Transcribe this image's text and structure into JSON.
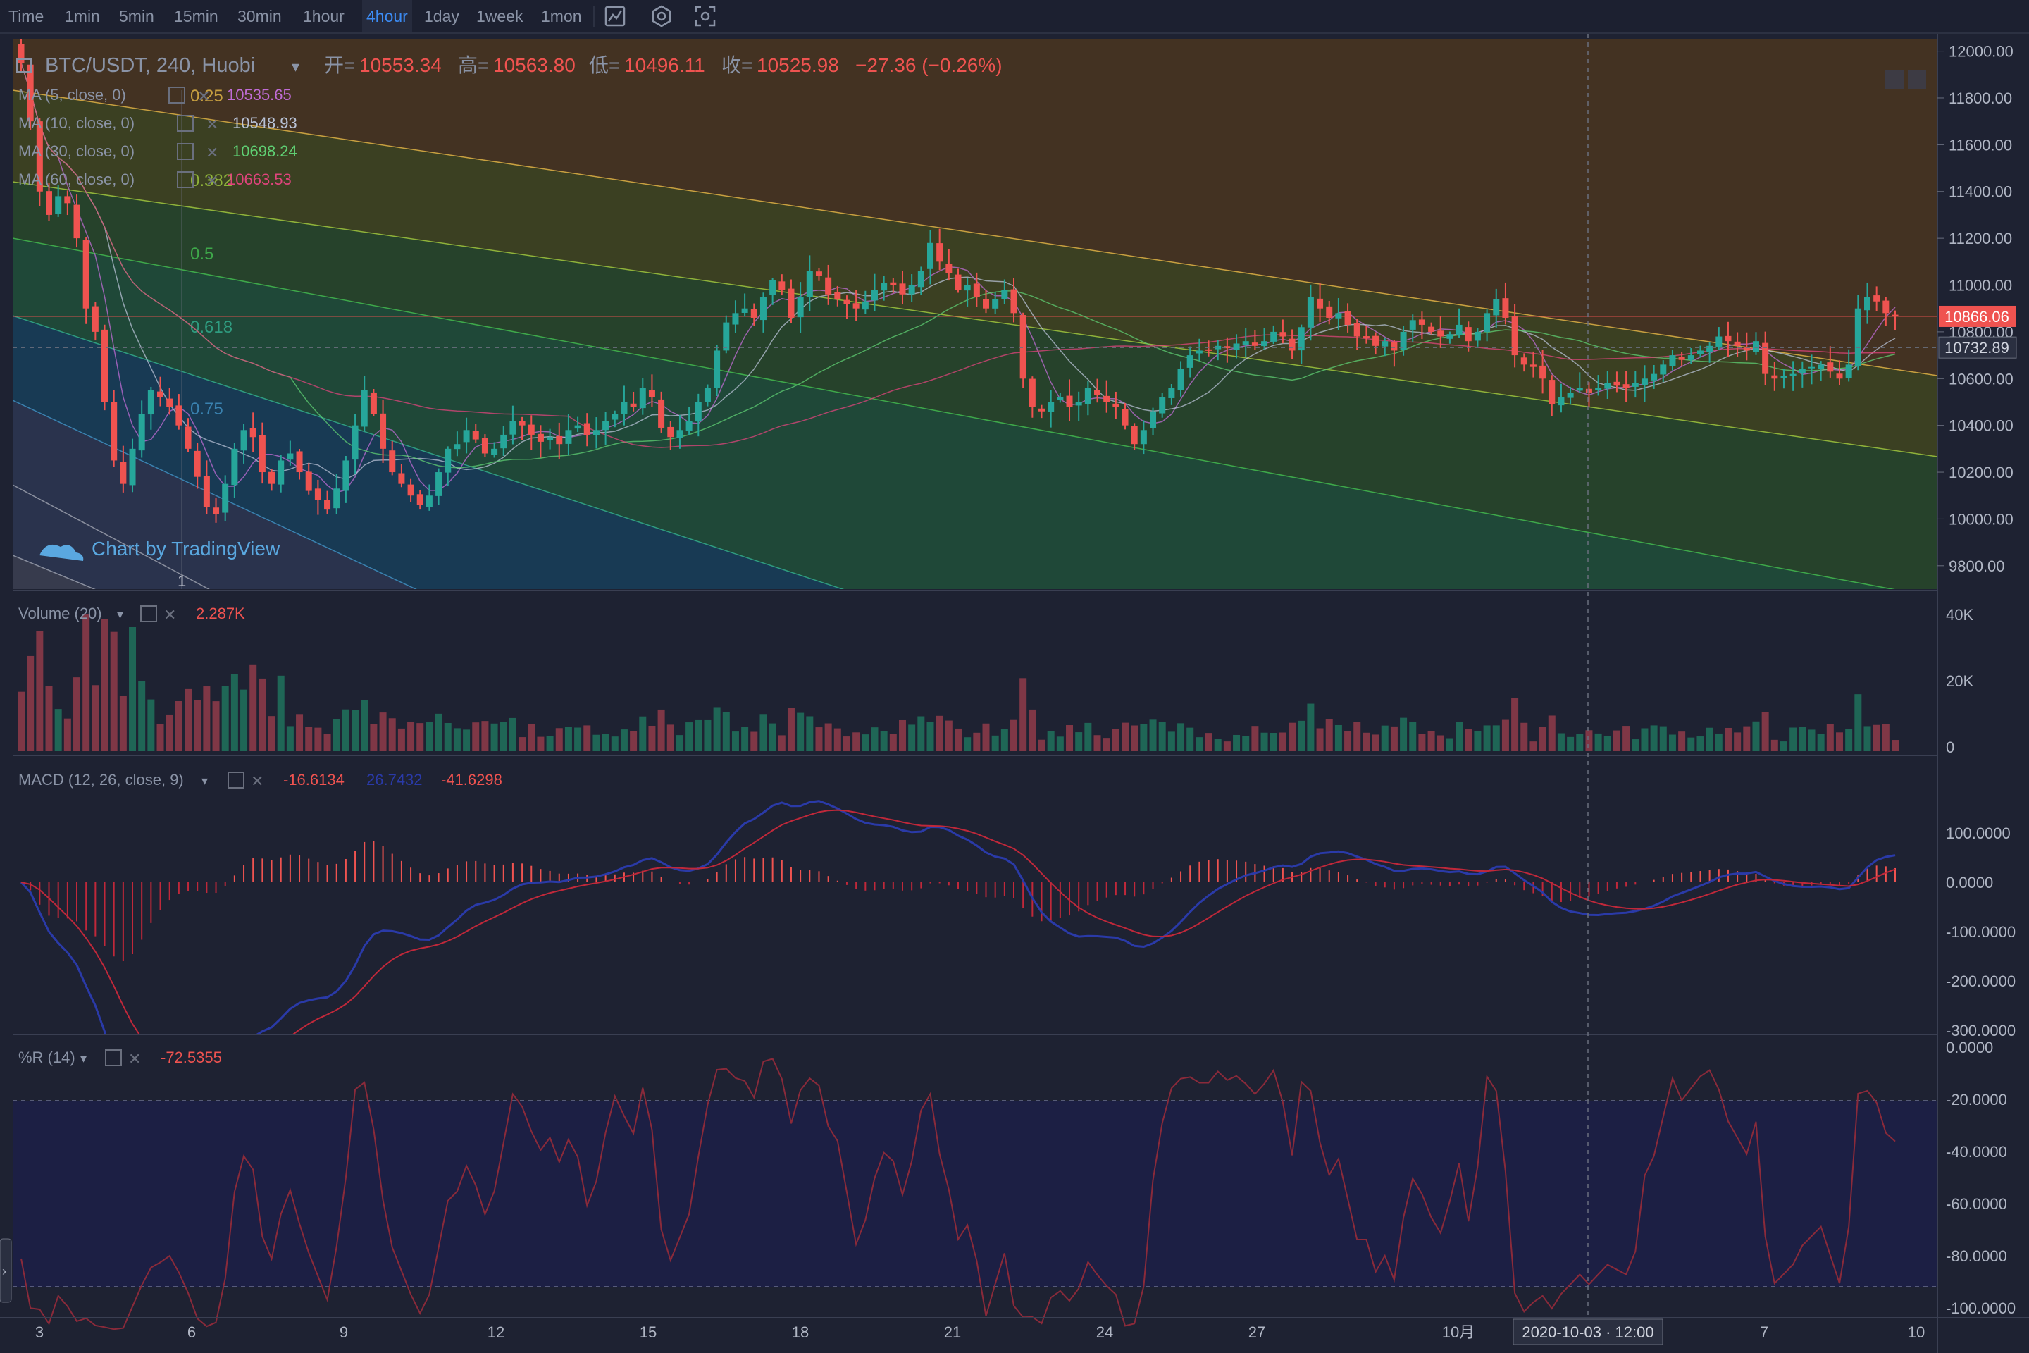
{
  "toolbar": {
    "intervals": [
      "Time",
      "1min",
      "5min",
      "15min",
      "30min",
      "1hour",
      "4hour",
      "1day",
      "1week",
      "1mon"
    ],
    "active": "4hour",
    "icons": [
      "indicator-icon",
      "settings-icon",
      "screenshot-icon"
    ]
  },
  "header": {
    "symbol": "BTC/USDT, 240, Huobi",
    "open_label": "开=",
    "open": "10553.34",
    "high_label": "高=",
    "high": "10563.80",
    "low_label": "低=",
    "low": "10496.11",
    "close_label": "收=",
    "close": "10525.98",
    "change": "−27.36 (−0.26%)"
  },
  "ma_legend": [
    {
      "label": "MA (5, close, 0)",
      "value": "10535.65",
      "color": "#c06cd6"
    },
    {
      "label": "MA (10, close, 0)",
      "value": "10548.93",
      "color": "#b8c2d6"
    },
    {
      "label": "MA (30, close, 0)",
      "value": "10698.24",
      "color": "#5fcf73"
    },
    {
      "label": "MA (60, close, 0)",
      "value": "10663.53",
      "color": "#e0447c"
    }
  ],
  "fib_levels": [
    "0.25",
    "0.382",
    "0.5",
    "0.618",
    "0.75",
    "1"
  ],
  "watermark": "Chart by TradingView",
  "price_axis": {
    "ticks": [
      "12000.00",
      "11800.00",
      "11600.00",
      "11400.00",
      "11200.00",
      "11000.00",
      "10800.00",
      "10600.00",
      "10400.00",
      "10200.00",
      "10000.00",
      "9800.00"
    ],
    "last_price_tag": "10866.06",
    "crosshair_tag": "10732.89"
  },
  "volume": {
    "label": "Volume (20)",
    "value": "2.287K",
    "ticks": [
      "40K",
      "20K",
      "0"
    ]
  },
  "macd": {
    "label": "MACD (12, 26, close, 9)",
    "v1": "-16.6134",
    "v2": "26.7432",
    "v3": "-41.6298",
    "ticks": [
      "100.0000",
      "0.0000",
      "-100.0000",
      "-200.0000",
      "-300.0000"
    ]
  },
  "wr": {
    "label": "%R (14)",
    "value": "-72.5355",
    "ticks": [
      "0.0000",
      "-20.0000",
      "-40.0000",
      "-60.0000",
      "-80.0000",
      "-100.0000"
    ]
  },
  "time_axis": {
    "labels": [
      "3",
      "6",
      "9",
      "12",
      "15",
      "18",
      "21",
      "24",
      "27",
      "10月",
      "7",
      "10"
    ],
    "crosshair_time": "2020-10-03 · 12:00"
  },
  "colors": {
    "up": "#26a69a",
    "down": "#ef5350",
    "background": "#1e2232",
    "accent": "#3c8cf5"
  },
  "chart_data": {
    "type": "candlestick",
    "title": "BTC/USDT, 240, Huobi",
    "ylim": [
      9700,
      12050
    ],
    "close_series": [
      11950,
      11700,
      11400,
      11300,
      11380,
      11350,
      11200,
      10900,
      10800,
      10500,
      10250,
      10150,
      10300,
      10450,
      10550,
      10520,
      10480,
      10400,
      10300,
      10180,
      10050,
      10020,
      10150,
      10300,
      10380,
      10350,
      10200,
      10150,
      10250,
      10280,
      10200,
      10120,
      10080,
      10040,
      10130,
      10250,
      10400,
      10550,
      10450,
      10300,
      10200,
      10150,
      10100,
      10060,
      10100,
      10200,
      10300,
      10320,
      10380,
      10340,
      10280,
      10300,
      10360,
      10420,
      10400,
      10360,
      10330,
      10350,
      10320,
      10380,
      10400,
      10360,
      10380,
      10420,
      10450,
      10500,
      10480,
      10560,
      10520,
      10390,
      10350,
      10380,
      10420,
      10500,
      10560,
      10720,
      10840,
      10880,
      10900,
      10860,
      10950,
      11020,
      10980,
      10860,
      10950,
      11060,
      11040,
      10960,
      10940,
      10920,
      10900,
      10930,
      10980,
      11010,
      11000,
      10960,
      11000,
      11060,
      11180,
      11100,
      11050,
      10980,
      11000,
      10950,
      10900,
      10940,
      10980,
      10880,
      10600,
      10480,
      10460,
      10500,
      10520,
      10480,
      10500,
      10560,
      10530,
      10500,
      10480,
      10400,
      10320,
      10380,
      10460,
      10520,
      10560,
      10640,
      10700,
      10720,
      10720,
      10740,
      10730,
      10750,
      10760,
      10740,
      10760,
      10800,
      10780,
      10720,
      10820,
      10950,
      10900,
      10860,
      10880,
      10830,
      10780,
      10780,
      10740,
      10760,
      10720,
      10800,
      10850,
      10830,
      10800,
      10780,
      10790,
      10830,
      10760,
      10800,
      10880,
      10940,
      10860,
      10700,
      10660,
      10650,
      10600,
      10490,
      10520,
      10540,
      10560,
      10540,
      10560,
      10580,
      10570,
      10560,
      10580,
      10600,
      10620,
      10660,
      10700,
      10680,
      10700,
      10720,
      10740,
      10780,
      10760,
      10740,
      10720,
      10760,
      10620,
      10600,
      10610,
      10620,
      10640,
      10650,
      10660,
      10630,
      10600,
      10660,
      10900,
      10950,
      10930,
      10880,
      10866
    ],
    "last_price": 10866.06
  }
}
